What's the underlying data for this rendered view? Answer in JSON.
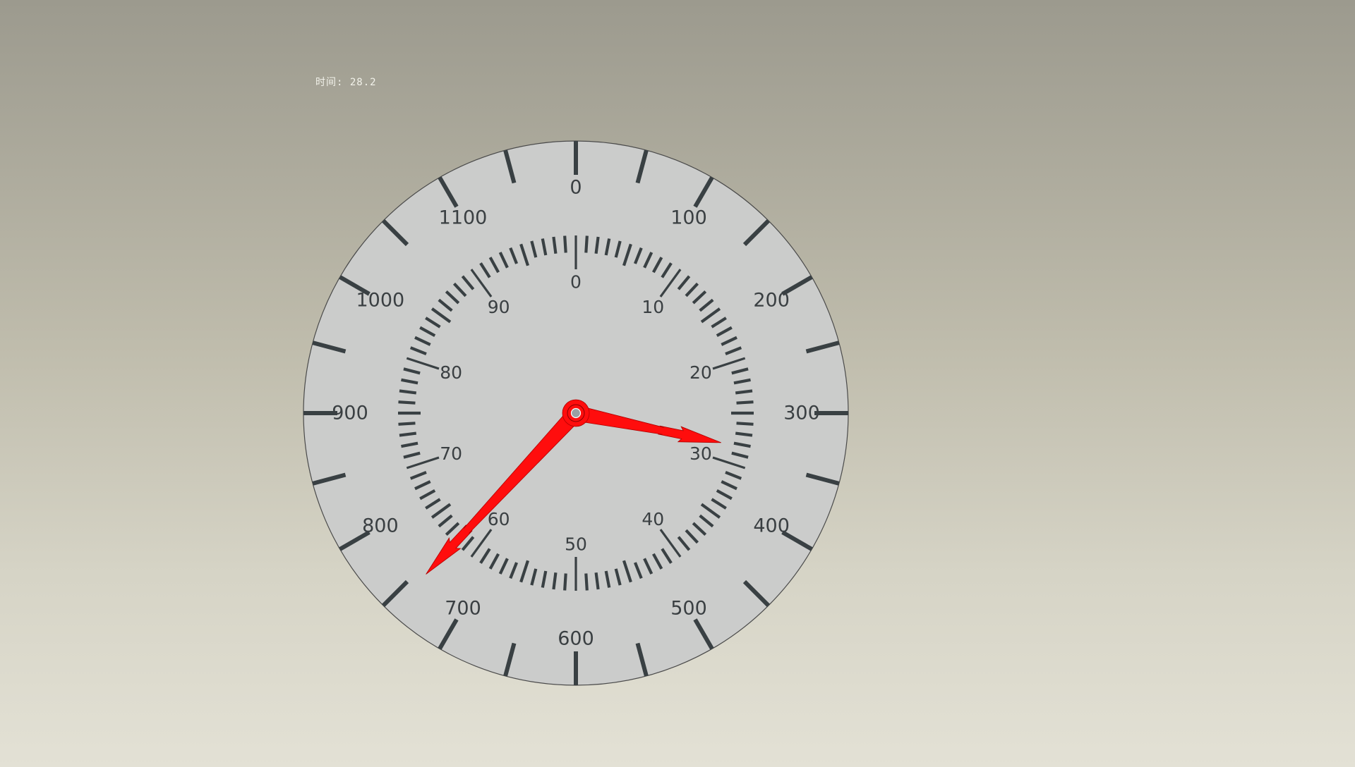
{
  "readout": {
    "label": "时间:",
    "value": "28.2"
  },
  "dial": {
    "outer_scale": {
      "min": 0,
      "max": 1200,
      "label_step": 100,
      "major_tick_step": 50,
      "labels": [
        "0",
        "100",
        "200",
        "300",
        "400",
        "500",
        "600",
        "700",
        "800",
        "900",
        "1000",
        "1100"
      ]
    },
    "inner_scale": {
      "min": 0,
      "max": 100,
      "label_step": 10,
      "minor_tick_step": 1,
      "labels": [
        "0",
        "10",
        "20",
        "30",
        "40",
        "50",
        "60",
        "70",
        "80",
        "90"
      ]
    },
    "hands": {
      "short_hand_inner_value": 28.2,
      "long_hand_outer_value": 743
    },
    "colors": {
      "face": "#cbcccb",
      "ticks": "#394043",
      "numbers": "#3a3f42",
      "hands": "#ff0d0d",
      "hub": "#9aa0a3"
    }
  }
}
